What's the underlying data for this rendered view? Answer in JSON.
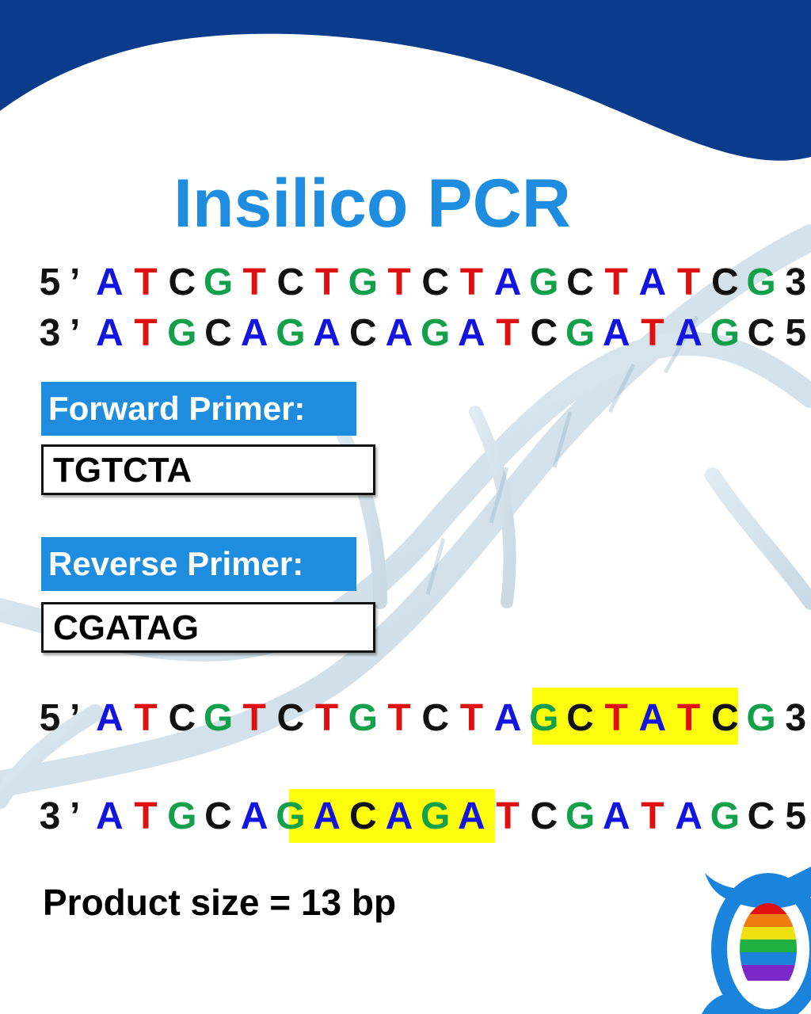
{
  "title": "Insilico PCR",
  "colors": {
    "header_band": "#0b3c8c",
    "title": "#1e8de0",
    "label_bg": "#1e8de0",
    "highlight": "#fcfc0c",
    "A": "#1414e0",
    "T": "#e01010",
    "C": "#111111",
    "G": "#12a04a",
    "end": "#111111"
  },
  "sequence_top": {
    "strand1": [
      "5",
      "’",
      "A",
      "T",
      "C",
      "G",
      "T",
      "C",
      "T",
      "G",
      "T",
      "C",
      "T",
      "A",
      "G",
      "C",
      "T",
      "A",
      "T",
      "C",
      "G",
      "3",
      "’"
    ],
    "strand2": [
      "3",
      "’",
      "A",
      "T",
      "G",
      "C",
      "A",
      "G",
      "A",
      "C",
      "A",
      "G",
      "A",
      "T",
      "C",
      "G",
      "A",
      "T",
      "A",
      "G",
      "C",
      "5",
      "’"
    ]
  },
  "forward_primer": {
    "label": "Forward Primer:",
    "value": "TGTCTA"
  },
  "reverse_primer": {
    "label": "Reverse Primer:",
    "value": "CGATAG"
  },
  "product": "Product size = 13 bp",
  "logo": {
    "name": "logo-icon"
  }
}
